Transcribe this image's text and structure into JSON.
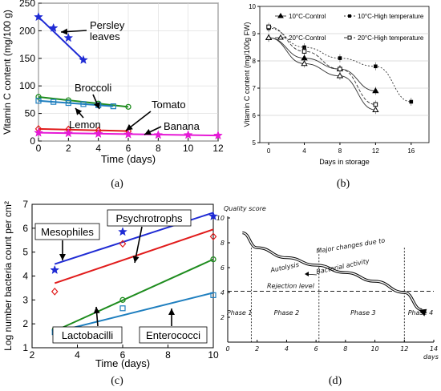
{
  "chart_data": [
    {
      "type": "line",
      "panel_label": "(a)",
      "xlabel": "Time (days)",
      "ylabel": "Vitamin C content (mg/100 g)",
      "xlim": [
        0,
        12
      ],
      "ylim": [
        0,
        250
      ],
      "x_ticks": [
        0,
        2,
        4,
        6,
        8,
        10,
        12
      ],
      "y_ticks": [
        0,
        50,
        100,
        150,
        200,
        250
      ],
      "grid": true,
      "series": [
        {
          "name": "Persley leaves",
          "color": "#1f2bd4",
          "marker": "star",
          "points": [
            [
              0,
              225
            ],
            [
              1,
              205
            ],
            [
              2,
              187
            ],
            [
              3,
              147
            ]
          ],
          "fit": [
            [
              0,
              225
            ],
            [
              3,
              147
            ]
          ]
        },
        {
          "name": "Broccoli",
          "color": "#1e8c1e",
          "marker": "circle",
          "points": [
            [
              0,
              80
            ],
            [
              2,
              74
            ],
            [
              4,
              68
            ],
            [
              6,
              62
            ]
          ],
          "fit": [
            [
              0,
              80
            ],
            [
              6,
              62
            ]
          ]
        },
        {
          "name": "Lemon",
          "color": "#1f7fbf",
          "marker": "square",
          "points": [
            [
              0,
              73
            ],
            [
              1,
              71
            ],
            [
              2,
              69
            ],
            [
              3,
              67
            ],
            [
              4,
              65
            ],
            [
              5,
              63
            ]
          ],
          "fit": [
            [
              0,
              73
            ],
            [
              5,
              63
            ]
          ]
        },
        {
          "name": "Tomato",
          "color": "#e11b1b",
          "marker": "diamond",
          "points": [
            [
              0,
              22
            ],
            [
              2,
              21
            ],
            [
              4,
              19
            ],
            [
              6,
              18
            ]
          ],
          "fit": [
            [
              0,
              22
            ],
            [
              6,
              18
            ]
          ]
        },
        {
          "name": "Banana",
          "color": "#e619d6",
          "marker": "star",
          "points": [
            [
              0,
              15
            ],
            [
              2,
              14
            ],
            [
              4,
              13
            ],
            [
              6,
              12
            ],
            [
              8,
              11
            ],
            [
              10,
              11
            ],
            [
              12,
              10
            ]
          ],
          "fit": [
            [
              0,
              15
            ],
            [
              12,
              10
            ]
          ]
        }
      ]
    },
    {
      "type": "line",
      "panel_label": "(b)",
      "xlabel": "Days in storage",
      "ylabel": "Vitamin C content (mg/100g FW)",
      "xlim": [
        -1,
        18
      ],
      "ylim": [
        5,
        10
      ],
      "x_ticks": [
        0,
        4,
        8,
        12,
        16
      ],
      "y_ticks": [
        5,
        6,
        7,
        8,
        9,
        10
      ],
      "grid": true,
      "legend": "top",
      "series": [
        {
          "name": "10°C-Control",
          "marker": "triangle-filled",
          "dash": "solid",
          "points": [
            [
              0,
              8.85
            ],
            [
              4,
              8.1
            ],
            [
              8,
              7.7
            ],
            [
              12,
              6.9
            ]
          ]
        },
        {
          "name": "10°C-High temperature",
          "marker": "square-filled",
          "dash": "dotted",
          "points": [
            [
              0,
              9.2
            ],
            [
              4,
              8.5
            ],
            [
              8,
              8.1
            ],
            [
              12,
              7.8
            ],
            [
              16,
              6.5
            ]
          ]
        },
        {
          "name": "20°C-Control",
          "marker": "triangle-open",
          "dash": "solid",
          "points": [
            [
              0,
              8.85
            ],
            [
              4,
              7.9
            ],
            [
              8,
              7.45
            ],
            [
              12,
              6.2
            ]
          ]
        },
        {
          "name": "20°C-High temperature",
          "marker": "square-open",
          "dash": "dashed",
          "points": [
            [
              0,
              9.25
            ],
            [
              4,
              8.35
            ],
            [
              8,
              7.7
            ],
            [
              12,
              6.4
            ]
          ]
        }
      ]
    },
    {
      "type": "scatter",
      "panel_label": "(c)",
      "xlabel": "Time (days)",
      "ylabel": "Log number bacteria count per cm²",
      "xlim": [
        2,
        10
      ],
      "ylim": [
        1,
        7
      ],
      "x_ticks": [
        2,
        4,
        6,
        8,
        10
      ],
      "y_ticks": [
        1,
        2,
        3,
        4,
        5,
        6,
        7
      ],
      "grid": false,
      "series": [
        {
          "name": "Mesophiles",
          "color": "#1f2bd4",
          "marker": "star",
          "points": [
            [
              3,
              4.25
            ],
            [
              6,
              5.85
            ],
            [
              10,
              6.5
            ]
          ],
          "fit": [
            [
              3,
              4.5
            ],
            [
              10,
              6.65
            ]
          ]
        },
        {
          "name": "Psychrotrophs",
          "color": "#e11b1b",
          "marker": "diamond",
          "points": [
            [
              3,
              3.35
            ],
            [
              6,
              5.35
            ],
            [
              10,
              5.65
            ]
          ],
          "fit": [
            [
              3,
              3.7
            ],
            [
              10,
              5.95
            ]
          ]
        },
        {
          "name": "Lactobacilli",
          "color": "#1e8c1e",
          "marker": "circle",
          "points": [
            [
              3,
              1.75
            ],
            [
              6,
              3.0
            ],
            [
              10,
              4.7
            ]
          ],
          "fit": [
            [
              3,
              1.7
            ],
            [
              10,
              4.7
            ]
          ]
        },
        {
          "name": "Enterococci",
          "color": "#1f7fbf",
          "marker": "square",
          "points": [
            [
              3,
              1.65
            ],
            [
              6,
              2.65
            ],
            [
              10,
              3.2
            ]
          ],
          "fit": [
            [
              3,
              1.65
            ],
            [
              10,
              3.3
            ]
          ]
        }
      ]
    },
    {
      "type": "line",
      "panel_label": "(d)",
      "ylabel": "Quality score",
      "xlabel": "days",
      "xlim": [
        0,
        14
      ],
      "ylim": [
        0,
        10
      ],
      "x_ticks": [
        0,
        2,
        4,
        6,
        8,
        10,
        12,
        14
      ],
      "y_ticks": [
        2,
        4,
        6,
        8,
        10
      ],
      "grid": false,
      "series": [
        {
          "name": "Quality curve",
          "points": [
            [
              1,
              8.8
            ],
            [
              2,
              7.6
            ],
            [
              4,
              6.8
            ],
            [
              6,
              6.2
            ],
            [
              8,
              5.6
            ],
            [
              10,
              4.9
            ],
            [
              12,
              4.0
            ],
            [
              13.2,
              2.6
            ]
          ]
        }
      ],
      "annotations": {
        "rejection_level": {
          "text": "Rejection level",
          "y": 4.1
        },
        "phase_boundaries": [
          1.6,
          6.2,
          12
        ],
        "phases": [
          "Phase 1",
          "Phase 2",
          "Phase 3",
          "Phase 4"
        ],
        "curve_text_1": "Major changes due to",
        "curve_text_2": "Autolysis",
        "curve_text_3": "Bacterial activity"
      }
    }
  ]
}
